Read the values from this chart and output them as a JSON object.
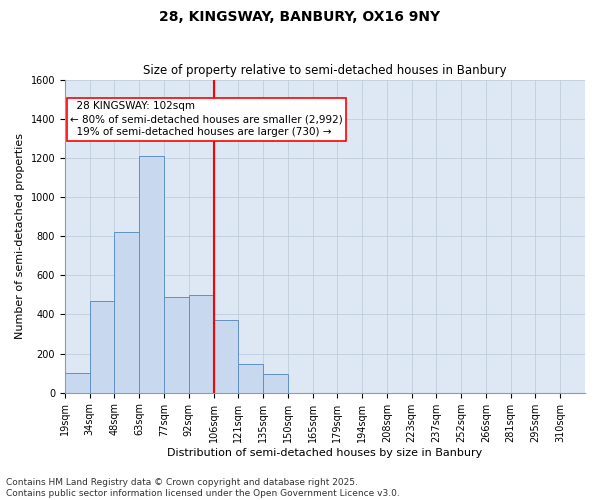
{
  "title_line1": "28, KINGSWAY, BANBURY, OX16 9NY",
  "title_line2": "Size of property relative to semi-detached houses in Banbury",
  "xlabel": "Distribution of semi-detached houses by size in Banbury",
  "ylabel": "Number of semi-detached properties",
  "bin_labels": [
    "19sqm",
    "34sqm",
    "48sqm",
    "63sqm",
    "77sqm",
    "92sqm",
    "106sqm",
    "121sqm",
    "135sqm",
    "150sqm",
    "165sqm",
    "179sqm",
    "194sqm",
    "208sqm",
    "223sqm",
    "237sqm",
    "252sqm",
    "266sqm",
    "281sqm",
    "295sqm",
    "310sqm"
  ],
  "bar_heights": [
    100,
    470,
    820,
    1210,
    490,
    500,
    370,
    145,
    95,
    0,
    0,
    0,
    0,
    0,
    0,
    0,
    0,
    0,
    0,
    0
  ],
  "bar_color": "#c8d9ef",
  "bar_edge_color": "#6090c8",
  "vline_index": 6,
  "vline_color": "red",
  "property_label": "28 KINGSWAY: 102sqm",
  "smaller_pct": 80,
  "smaller_count": 2992,
  "larger_pct": 19,
  "larger_count": 730,
  "annotation_box_color": "red",
  "ylim": [
    0,
    1600
  ],
  "yticks": [
    0,
    200,
    400,
    600,
    800,
    1000,
    1200,
    1400,
    1600
  ],
  "grid_color": "#b8c8d8",
  "bg_color": "#dde8f4",
  "footer_line1": "Contains HM Land Registry data © Crown copyright and database right 2025.",
  "footer_line2": "Contains public sector information licensed under the Open Government Licence v3.0.",
  "title_fontsize": 10,
  "subtitle_fontsize": 8.5,
  "axis_label_fontsize": 8,
  "tick_fontsize": 7,
  "annotation_fontsize": 7.5,
  "footer_fontsize": 6.5
}
